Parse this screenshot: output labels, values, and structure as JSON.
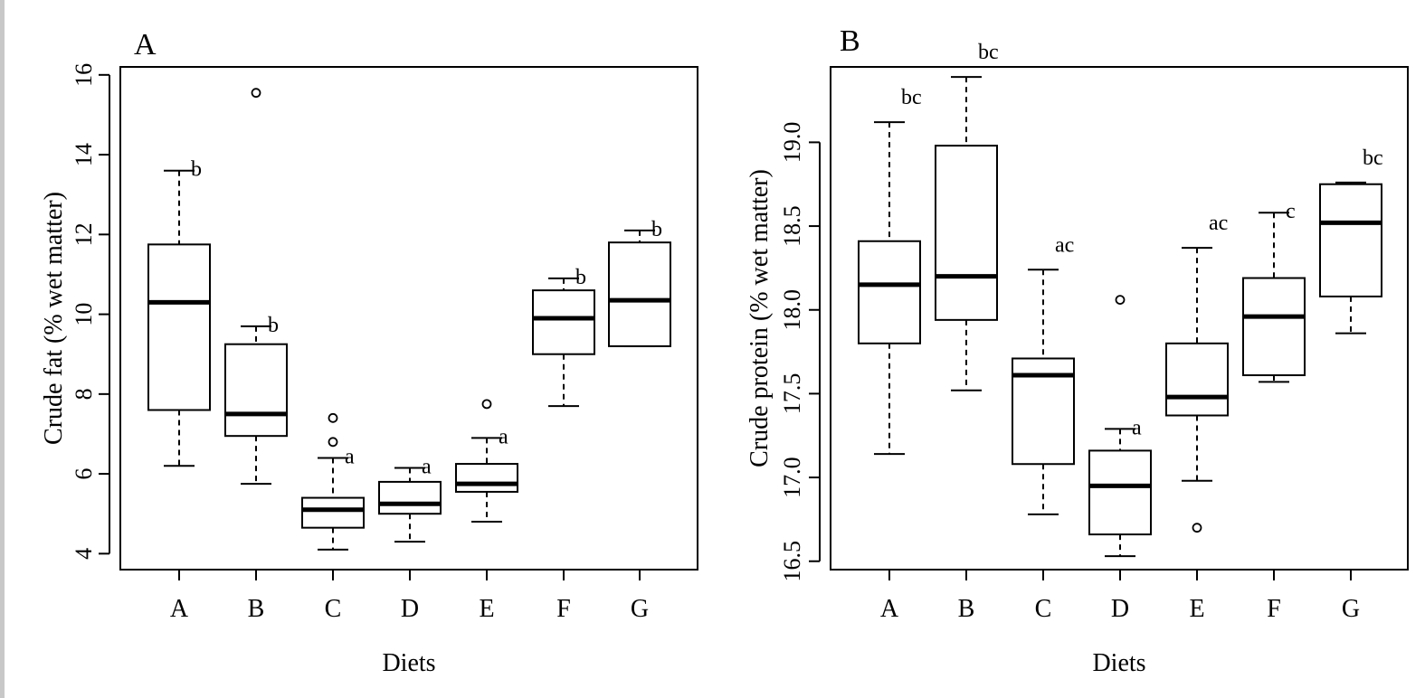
{
  "chart_data": [
    {
      "type": "box",
      "panel_label": "A",
      "xlabel": "Diets",
      "ylabel": "Crude fat (% wet matter)",
      "ylim": [
        3.6,
        16.2
      ],
      "yticks": [
        "4",
        "6",
        "8",
        "10",
        "12",
        "14",
        "16"
      ],
      "ytick_values": [
        4,
        6,
        8,
        10,
        12,
        14,
        16
      ],
      "categories": [
        "A",
        "B",
        "C",
        "D",
        "E",
        "F",
        "G"
      ],
      "boxes": [
        {
          "whisker_low": 6.2,
          "q1": 7.6,
          "median": 10.3,
          "q3": 11.75,
          "whisker_high": 13.6,
          "outliers": [],
          "letter": "b"
        },
        {
          "whisker_low": 5.75,
          "q1": 6.95,
          "median": 7.5,
          "q3": 9.25,
          "whisker_high": 9.7,
          "outliers": [
            15.55
          ],
          "letter": "b"
        },
        {
          "whisker_low": 4.1,
          "q1": 4.65,
          "median": 5.1,
          "q3": 5.4,
          "whisker_high": 6.4,
          "outliers": [
            6.8,
            7.4
          ],
          "letter": "a"
        },
        {
          "whisker_low": 4.3,
          "q1": 5.0,
          "median": 5.25,
          "q3": 5.8,
          "whisker_high": 6.15,
          "outliers": [],
          "letter": "a"
        },
        {
          "whisker_low": 4.8,
          "q1": 5.55,
          "median": 5.75,
          "q3": 6.25,
          "whisker_high": 6.9,
          "outliers": [
            7.75
          ],
          "letter": "a"
        },
        {
          "whisker_low": 7.7,
          "q1": 9.0,
          "median": 9.9,
          "q3": 10.6,
          "whisker_high": 10.9,
          "outliers": [],
          "letter": "b"
        },
        {
          "whisker_low": 9.2,
          "q1": 9.2,
          "median": 10.35,
          "q3": 11.8,
          "whisker_high": 12.1,
          "outliers": [],
          "letter": "b"
        }
      ]
    },
    {
      "type": "box",
      "panel_label": "B",
      "xlabel": "Diets",
      "ylabel": "Crude protein (% wet matter)",
      "ylim": [
        16.45,
        19.45
      ],
      "yticks": [
        "16.5",
        "17.0",
        "17.5",
        "18.0",
        "18.5",
        "19.0"
      ],
      "ytick_values": [
        16.5,
        17.0,
        17.5,
        18.0,
        18.5,
        19.0
      ],
      "categories": [
        "A",
        "B",
        "C",
        "D",
        "E",
        "F",
        "G"
      ],
      "boxes": [
        {
          "whisker_low": 17.14,
          "q1": 17.8,
          "median": 18.15,
          "q3": 18.41,
          "whisker_high": 19.12,
          "outliers": [],
          "letter": "bc"
        },
        {
          "whisker_low": 17.52,
          "q1": 17.94,
          "median": 18.2,
          "q3": 18.98,
          "whisker_high": 19.39,
          "outliers": [],
          "letter": "bc"
        },
        {
          "whisker_low": 16.78,
          "q1": 17.08,
          "median": 17.61,
          "q3": 17.71,
          "whisker_high": 18.24,
          "outliers": [],
          "letter": "ac"
        },
        {
          "whisker_low": 16.53,
          "q1": 16.66,
          "median": 16.95,
          "q3": 17.16,
          "whisker_high": 17.29,
          "outliers": [
            18.06
          ],
          "letter": "a"
        },
        {
          "whisker_low": 16.98,
          "q1": 17.37,
          "median": 17.48,
          "q3": 17.8,
          "whisker_high": 18.37,
          "outliers": [
            16.7
          ],
          "letter": "ac"
        },
        {
          "whisker_low": 17.57,
          "q1": 17.61,
          "median": 17.96,
          "q3": 18.19,
          "whisker_high": 18.58,
          "outliers": [],
          "letter": "c"
        },
        {
          "whisker_low": 17.86,
          "q1": 18.08,
          "median": 18.52,
          "q3": 18.75,
          "whisker_high": 18.76,
          "outliers": [],
          "letter": "bc"
        }
      ]
    }
  ]
}
